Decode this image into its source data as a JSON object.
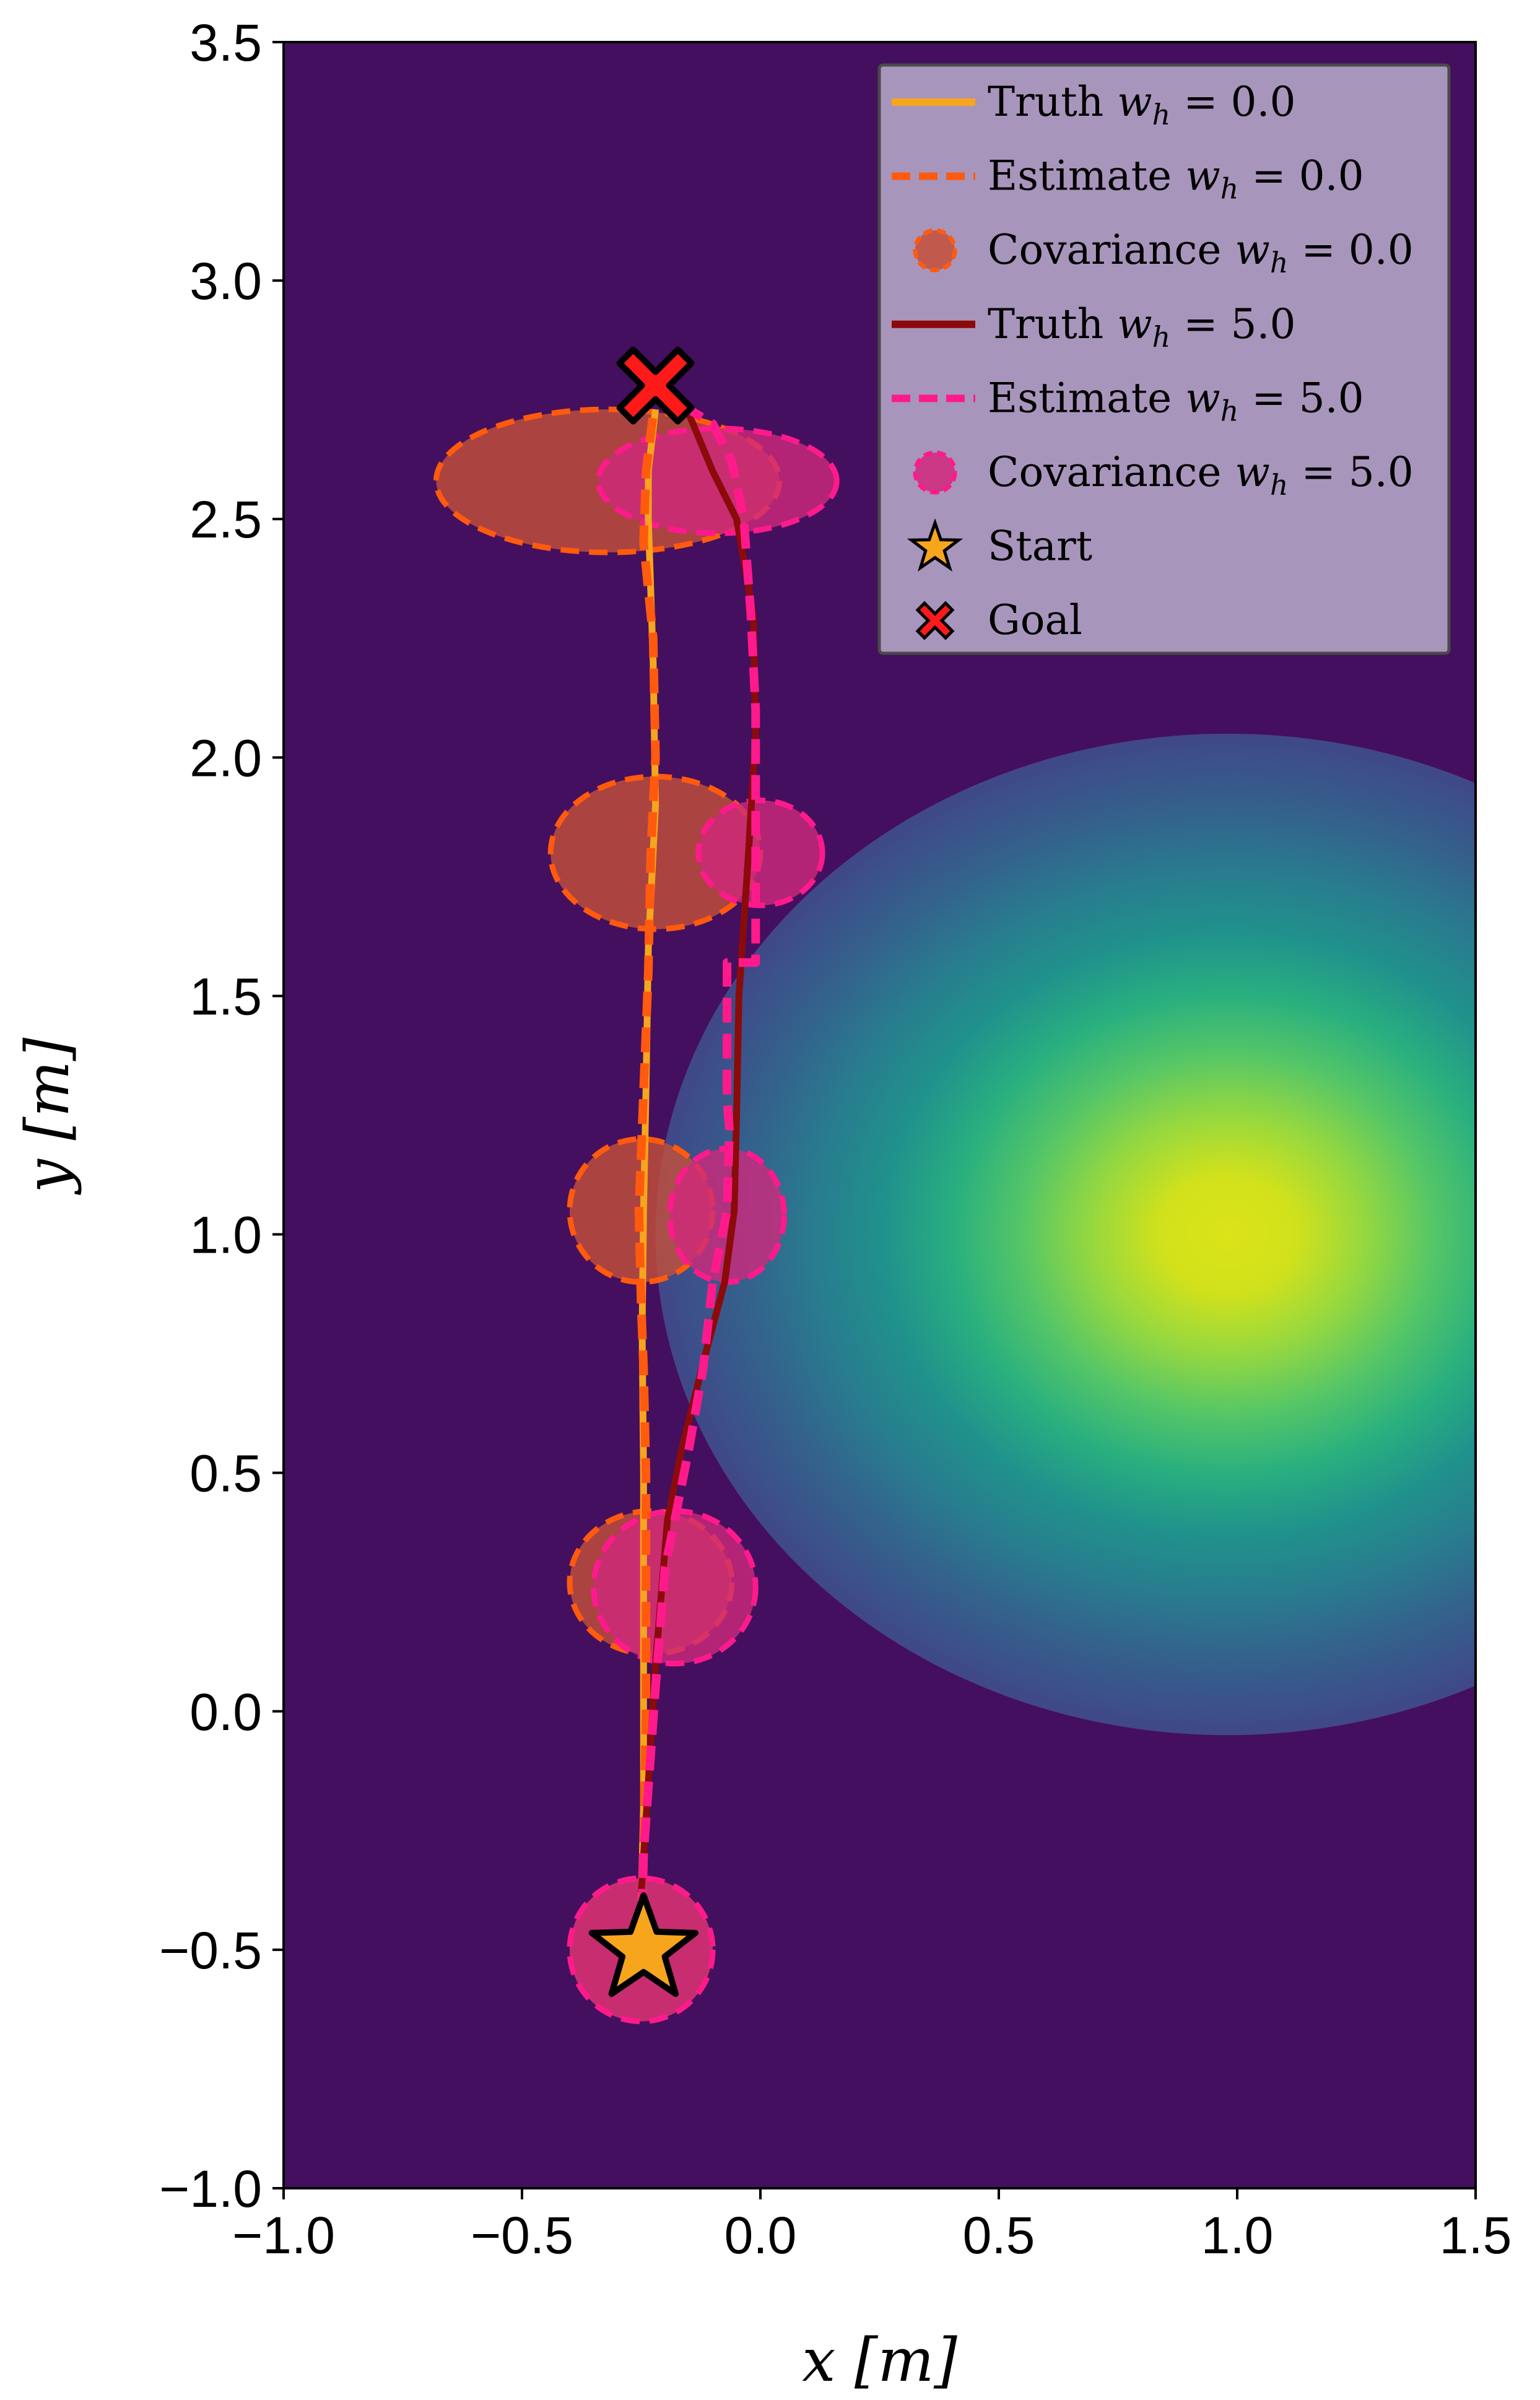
{
  "chart_data": {
    "type": "line",
    "xlabel": "x [m]",
    "ylabel": "y [m]",
    "xlim": [
      -1.0,
      1.5
    ],
    "ylim": [
      -1.0,
      3.5
    ],
    "x_ticks": [
      "−1.0",
      "−0.5",
      "0.0",
      "0.5",
      "1.0",
      "1.5"
    ],
    "y_ticks": [
      "−1.0",
      "−0.5",
      "0.0",
      "0.5",
      "1.0",
      "1.5",
      "2.0",
      "2.5",
      "3.0",
      "3.5"
    ],
    "grid": false,
    "legend_position": "top-right",
    "background": {
      "colormap": "viridis",
      "peak_center": [
        0.98,
        1.0
      ],
      "levels": 9
    },
    "series": [
      {
        "name": "Truth w_h = 0.0",
        "label_text": "Truth",
        "label_math": "w_h = 0.0",
        "style": "solid",
        "color": "#f7a51c",
        "points": [
          [
            -0.25,
            -0.4
          ],
          [
            -0.245,
            -0.2
          ],
          [
            -0.245,
            0.0
          ],
          [
            -0.245,
            0.2
          ],
          [
            -0.245,
            0.5
          ],
          [
            -0.248,
            0.8
          ],
          [
            -0.245,
            1.05
          ],
          [
            -0.24,
            1.3
          ],
          [
            -0.235,
            1.6
          ],
          [
            -0.22,
            1.9
          ],
          [
            -0.225,
            2.2
          ],
          [
            -0.235,
            2.5
          ],
          [
            -0.235,
            2.6
          ],
          [
            -0.22,
            2.73
          ]
        ]
      },
      {
        "name": "Estimate w_h = 0.0",
        "label_text": "Estimate",
        "label_math": "w_h = 0.0",
        "style": "dashed",
        "color": "#ff5a0d",
        "points": [
          [
            -0.25,
            -0.5
          ],
          [
            -0.245,
            -0.3
          ],
          [
            -0.24,
            0.0
          ],
          [
            -0.24,
            0.25
          ],
          [
            -0.24,
            0.5
          ],
          [
            -0.245,
            0.72
          ],
          [
            -0.25,
            0.85
          ],
          [
            -0.255,
            1.05
          ],
          [
            -0.245,
            1.3
          ],
          [
            -0.235,
            1.55
          ],
          [
            -0.23,
            1.8
          ],
          [
            -0.22,
            2.0
          ],
          [
            -0.225,
            2.25
          ],
          [
            -0.245,
            2.45
          ],
          [
            -0.24,
            2.6
          ],
          [
            -0.225,
            2.72
          ]
        ]
      },
      {
        "name": "Truth w_h = 5.0",
        "label_text": "Truth",
        "label_math": "w_h = 5.0",
        "style": "solid",
        "color": "#8b0a0a",
        "points": [
          [
            -0.25,
            -0.38
          ],
          [
            -0.235,
            -0.15
          ],
          [
            -0.22,
            0.1
          ],
          [
            -0.195,
            0.4
          ],
          [
            -0.165,
            0.55
          ],
          [
            -0.115,
            0.75
          ],
          [
            -0.075,
            0.9
          ],
          [
            -0.055,
            1.05
          ],
          [
            -0.05,
            1.25
          ],
          [
            -0.045,
            1.5
          ],
          [
            -0.025,
            1.8
          ],
          [
            -0.01,
            2.05
          ],
          [
            -0.015,
            2.3
          ],
          [
            -0.05,
            2.5
          ],
          [
            -0.1,
            2.6
          ],
          [
            -0.15,
            2.72
          ]
        ]
      },
      {
        "name": "Estimate w_h = 5.0",
        "label_text": "Estimate",
        "label_math": "w_h = 5.0",
        "style": "dashed",
        "color": "#ff1a8c",
        "points": [
          [
            -0.25,
            -0.5
          ],
          [
            -0.245,
            -0.3
          ],
          [
            -0.22,
            0.05
          ],
          [
            -0.2,
            0.3
          ],
          [
            -0.15,
            0.55
          ],
          [
            -0.12,
            0.72
          ],
          [
            -0.1,
            0.9
          ],
          [
            -0.07,
            1.05
          ],
          [
            -0.065,
            1.22
          ],
          [
            -0.07,
            1.28
          ],
          [
            -0.07,
            1.57
          ],
          [
            -0.01,
            1.57
          ],
          [
            -0.01,
            1.8
          ],
          [
            -0.01,
            2.1
          ],
          [
            -0.02,
            2.3
          ],
          [
            -0.035,
            2.5
          ],
          [
            -0.06,
            2.62
          ],
          [
            -0.1,
            2.7
          ],
          [
            -0.2,
            2.76
          ]
        ]
      }
    ],
    "covariances": [
      {
        "series": "Covariance w_h = 0.0",
        "label_text": "Covariance",
        "label_math": "w_h = 0.0",
        "fill": "#c5503a",
        "edge": "#ff5a0d",
        "ellipses": [
          [
            -0.25,
            -0.5,
            0.15,
            0.15
          ],
          [
            -0.23,
            0.27,
            0.17,
            0.15
          ],
          [
            -0.25,
            1.05,
            0.15,
            0.15
          ],
          [
            -0.22,
            1.8,
            0.22,
            0.16
          ],
          [
            -0.32,
            2.58,
            0.36,
            0.15
          ]
        ]
      },
      {
        "series": "Covariance w_h = 5.0",
        "label_text": "Covariance",
        "label_math": "w_h = 5.0",
        "fill": "#d0287c",
        "edge": "#ff1a8c",
        "ellipses": [
          [
            -0.25,
            -0.5,
            0.15,
            0.15
          ],
          [
            -0.18,
            0.26,
            0.17,
            0.16
          ],
          [
            -0.07,
            1.04,
            0.12,
            0.14
          ],
          [
            0.0,
            1.8,
            0.13,
            0.11
          ],
          [
            -0.09,
            2.58,
            0.25,
            0.11
          ]
        ]
      }
    ],
    "markers": [
      {
        "name": "Start",
        "shape": "star",
        "color": "#f7a51c",
        "x": -0.245,
        "y": -0.5
      },
      {
        "name": "Goal",
        "shape": "x",
        "color": "#ff1a1a",
        "x": -0.22,
        "y": 2.78
      }
    ],
    "legend": {
      "entries": [
        {
          "text": "Truth",
          "math_var": "w",
          "math_sub": "h",
          "math_val": " = 0.0"
        },
        {
          "text": "Estimate",
          "math_var": "w",
          "math_sub": "h",
          "math_val": " = 0.0"
        },
        {
          "text": "Covariance",
          "math_var": "w",
          "math_sub": "h",
          "math_val": " = 0.0"
        },
        {
          "text": "Truth",
          "math_var": "w",
          "math_sub": "h",
          "math_val": " = 5.0"
        },
        {
          "text": "Estimate",
          "math_var": "w",
          "math_sub": "h",
          "math_val": " = 5.0"
        },
        {
          "text": "Covariance",
          "math_var": "w",
          "math_sub": "h",
          "math_val": " = 5.0"
        },
        {
          "text": "Start"
        },
        {
          "text": "Goal"
        }
      ]
    }
  }
}
